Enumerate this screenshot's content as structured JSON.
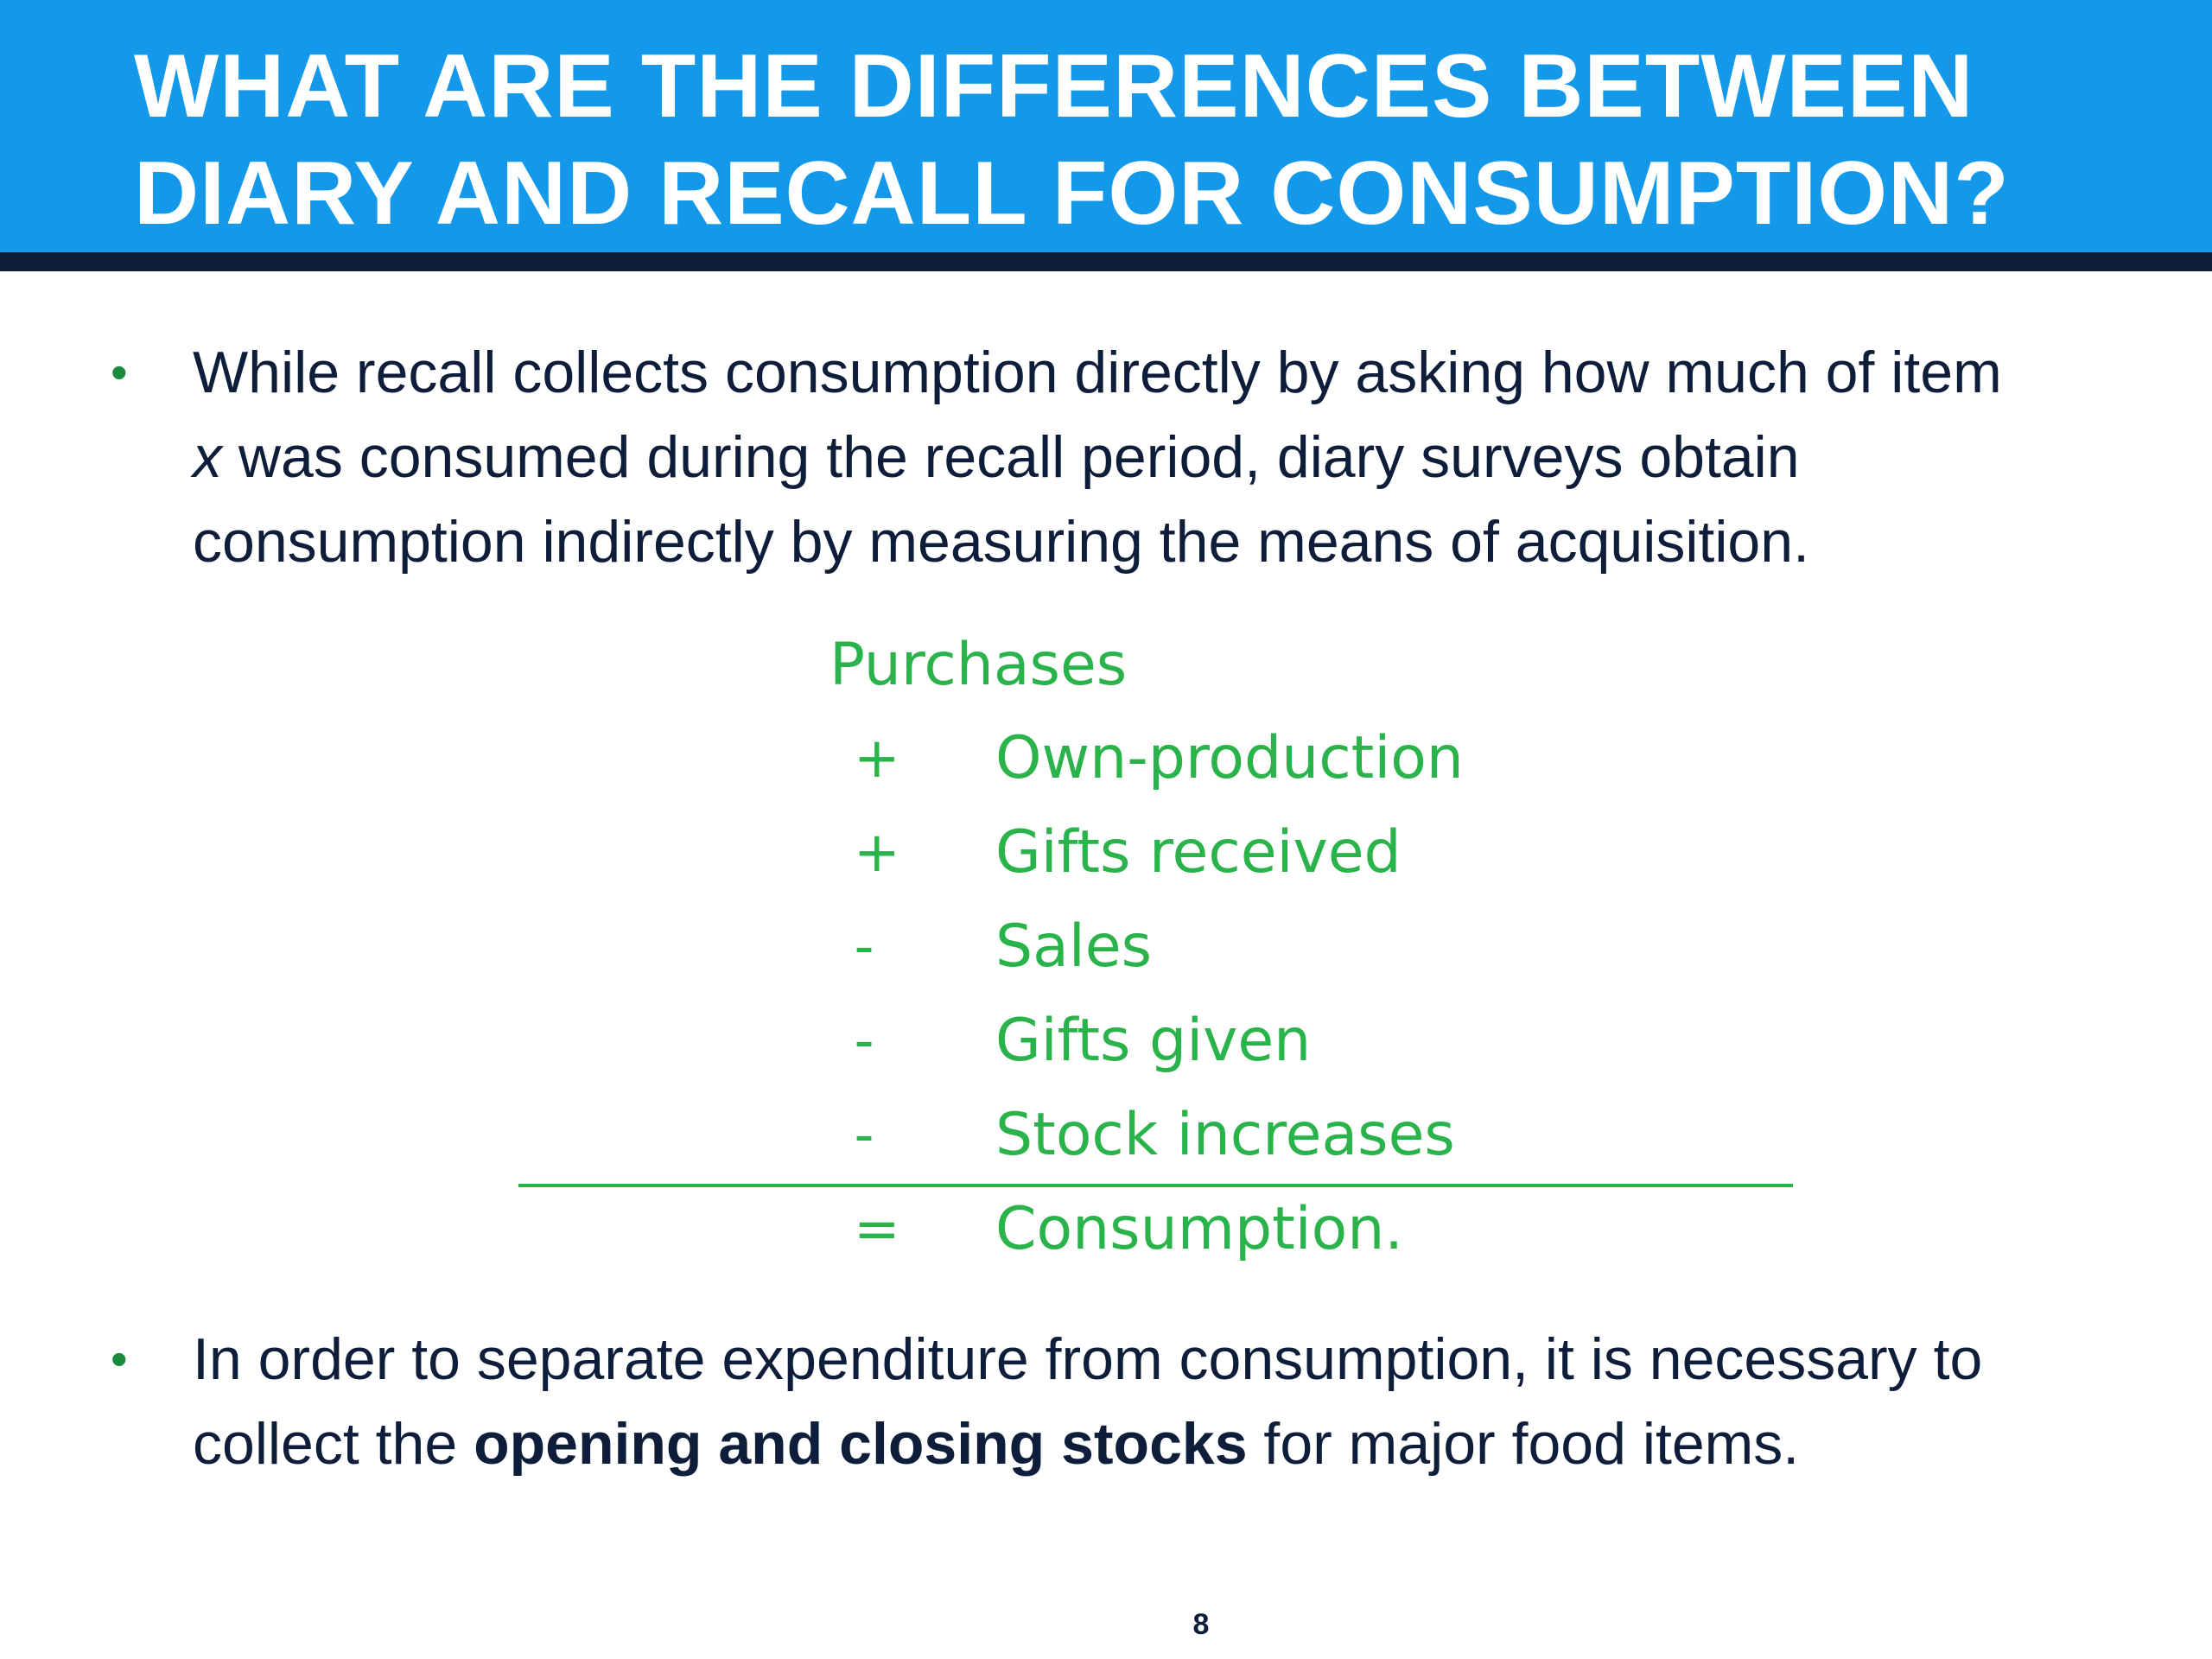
{
  "slide": {
    "title_lines": [
      "WHAT ARE THE DIFFERENCES BETWEEN",
      "DIARY AND RECALL FOR CONSUMPTION?"
    ],
    "bullet1": {
      "line1": "While recall collects consumption directly by asking how much of item",
      "line2_italic": "x",
      "line2_rest": " was consumed during the recall period, diary surveys obtain",
      "line3": "consumption indirectly by measuring the means of acquisition."
    },
    "formula": {
      "head": "Purchases",
      "rows": [
        {
          "op": "+",
          "term": "Own-production"
        },
        {
          "op": "+",
          "term": "Gifts received"
        },
        {
          "op": "-",
          "term": "Sales"
        },
        {
          "op": "-",
          "term": "Gifts given"
        },
        {
          "op": "-",
          "term": "Stock increases"
        }
      ],
      "result": {
        "op": "=",
        "term": "Consumption."
      }
    },
    "bullet2": {
      "line1": "In order to separate expenditure from consumption, it is necessary to",
      "line2_pre": "collect the ",
      "line2_bold": "opening and closing stocks",
      "line2_post": " for major food items."
    },
    "bullet_glyph": "•",
    "page_number": "8",
    "colors": {
      "header": "#1499ea",
      "header_rule": "#0d1e3a",
      "formula_green": "#29b34a",
      "bullet_green": "#1a8a3c",
      "body_text": "#0e1e3a"
    }
  }
}
